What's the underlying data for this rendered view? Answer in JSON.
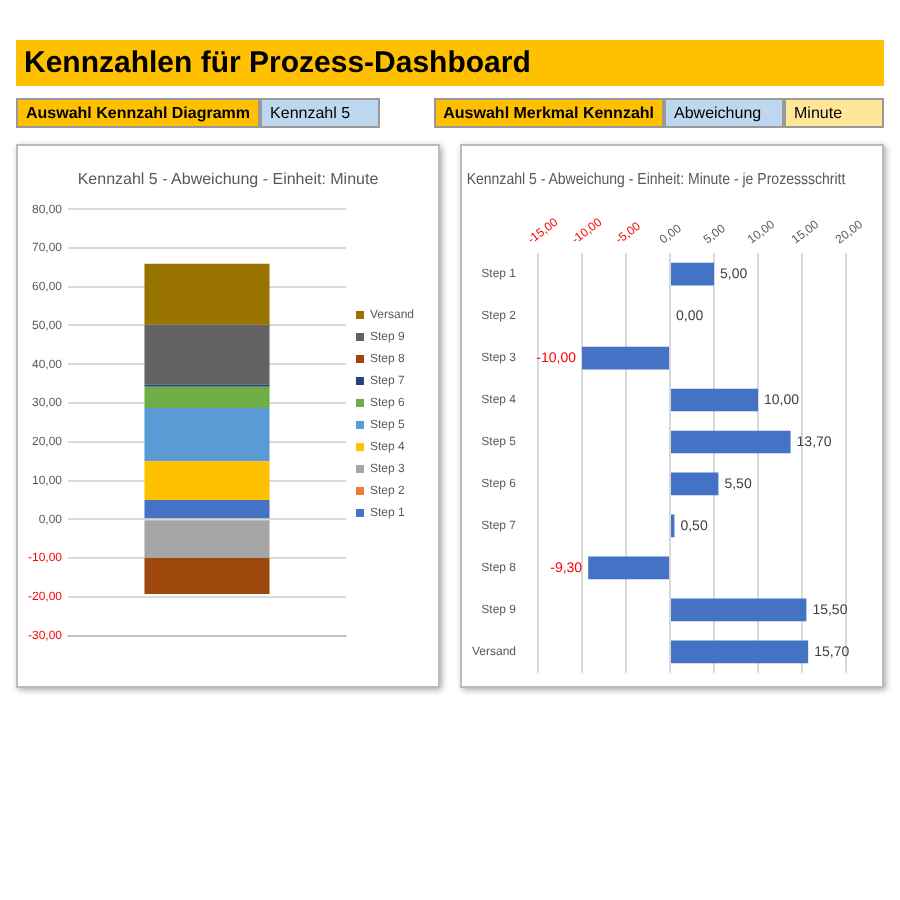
{
  "chart_data": [
    {
      "type": "other",
      "title": "Kennzahlen für Prozess-Dashboard",
      "annotations": [
        "Auswahl Kennzahl Diagramm",
        "Kennzahl 5",
        "Auswahl Merkmal Kennzahl",
        "Abweichung",
        "Minute"
      ]
    },
    {
      "type": "bar",
      "title": "Kennzahl 5 - Abweichung - Einheit: Minute",
      "categories": [
        null
      ],
      "stacked": true,
      "legend": "right",
      "grid": "y",
      "ylim": [
        -30,
        80
      ],
      "yticks": [
        {
          "value": -30,
          "label": "-30,00"
        },
        {
          "value": -20,
          "label": "-20,00"
        },
        {
          "value": -10,
          "label": "-10,00"
        },
        {
          "value": 0,
          "label": "0,00"
        },
        {
          "value": 10,
          "label": "10,00"
        },
        {
          "value": 20,
          "label": "20,00"
        },
        {
          "value": 30,
          "label": "30,00"
        },
        {
          "value": 40,
          "label": "40,00"
        },
        {
          "value": 50,
          "label": "50,00"
        },
        {
          "value": 60,
          "label": "60,00"
        },
        {
          "value": 70,
          "label": "70,00"
        },
        {
          "value": 80,
          "label": "80,00"
        }
      ],
      "series": [
        {
          "name": "Step 1",
          "color": "#4472c4",
          "values": [
            5.0
          ]
        },
        {
          "name": "Step 2",
          "color": "#ed7d31",
          "values": [
            0.0
          ]
        },
        {
          "name": "Step 3",
          "color": "#a5a5a5",
          "values": [
            -10.0
          ]
        },
        {
          "name": "Step 4",
          "color": "#ffc000",
          "values": [
            10.0
          ]
        },
        {
          "name": "Step 5",
          "color": "#5b9bd5",
          "values": [
            13.7
          ]
        },
        {
          "name": "Step 6",
          "color": "#70ad47",
          "values": [
            5.5
          ]
        },
        {
          "name": "Step 7",
          "color": "#264478",
          "values": [
            0.5
          ]
        },
        {
          "name": "Step 8",
          "color": "#9e480e",
          "values": [
            -9.3
          ]
        },
        {
          "name": "Step 9",
          "color": "#636363",
          "values": [
            15.5
          ]
        },
        {
          "name": "Versand",
          "color": "#997300",
          "values": [
            15.7
          ]
        }
      ]
    },
    {
      "type": "bar",
      "orientation": "horizontal",
      "title": "Kennzahl 5 - Abweichung - Einheit: Minute - je Prozessschritt",
      "grid": "x",
      "categories": [
        "Step 1",
        "Step 2",
        "Step 3",
        "Step 4",
        "Step 5",
        "Step 6",
        "Step 7",
        "Step 8",
        "Step 9",
        "Versand"
      ],
      "values": [
        5.0,
        0.0,
        -10.0,
        10.0,
        13.7,
        5.5,
        0.5,
        -9.3,
        15.5,
        15.7
      ],
      "value_labels": [
        "5,00",
        "0,00",
        "-10,00",
        "10,00",
        "13,70",
        "5,50",
        "0,50",
        "-9,30",
        "15,50",
        "15,70"
      ],
      "color": "#4472c4",
      "xlim": [
        -15,
        20
      ],
      "xticks": [
        {
          "value": -15,
          "label": "-15,00"
        },
        {
          "value": -10,
          "label": "-10,00"
        },
        {
          "value": -5,
          "label": "-5,00"
        },
        {
          "value": 0,
          "label": "0,00"
        },
        {
          "value": 5,
          "label": "5,00"
        },
        {
          "value": 10,
          "label": "10,00"
        },
        {
          "value": 15,
          "label": "15,00"
        },
        {
          "value": 20,
          "label": "20,00"
        }
      ]
    }
  ]
}
